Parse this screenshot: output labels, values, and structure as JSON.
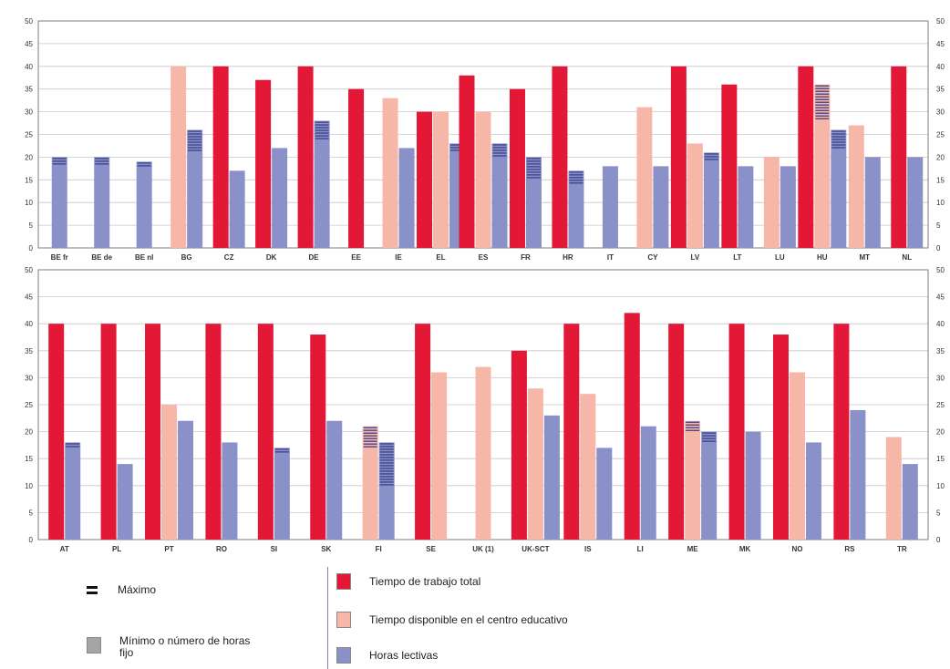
{
  "chart_data": [
    {
      "type": "bar",
      "categories": [
        "BE fr",
        "BE de",
        "BE nl",
        "BG",
        "CZ",
        "DK",
        "DE",
        "EE",
        "IE",
        "EL",
        "ES",
        "FR",
        "HR",
        "IT",
        "CY",
        "LV",
        "LT",
        "LU",
        "HU",
        "MT",
        "NL"
      ],
      "ylim": [
        0,
        50
      ],
      "yticks": [
        0,
        5,
        10,
        15,
        20,
        25,
        30,
        35,
        40,
        45,
        50
      ],
      "series": [
        {
          "name": "Tiempo de trabajo total",
          "values": [
            null,
            null,
            null,
            null,
            40,
            37,
            40,
            35,
            null,
            30,
            38,
            35,
            40,
            null,
            null,
            40,
            36,
            null,
            40,
            null,
            40
          ]
        },
        {
          "name": "Tiempo disponible en el centro educativo",
          "values": [
            null,
            null,
            null,
            40,
            null,
            null,
            null,
            null,
            33,
            30,
            30,
            null,
            null,
            null,
            31,
            23,
            null,
            20,
            36,
            27,
            null
          ]
        },
        {
          "name": "Horas lectivas",
          "values": [
            20,
            20,
            19,
            26,
            17,
            22,
            28,
            null,
            22,
            23,
            23,
            20,
            17,
            18,
            18,
            21,
            18,
            18,
            26,
            20,
            20
          ]
        }
      ],
      "maximum_hatched": [
        {
          "category": "BE fr",
          "series": "Horas lectivas",
          "from": 18,
          "to": 20
        },
        {
          "category": "BE de",
          "series": "Horas lectivas",
          "from": 18,
          "to": 20
        },
        {
          "category": "BE nl",
          "series": "Horas lectivas",
          "from": 18,
          "to": 19
        },
        {
          "category": "BG",
          "series": "Horas lectivas",
          "from": 21,
          "to": 26
        },
        {
          "category": "DE",
          "series": "Horas lectivas",
          "from": 24,
          "to": 28
        },
        {
          "category": "EL",
          "series": "Horas lectivas",
          "from": 21,
          "to": 23
        },
        {
          "category": "ES",
          "series": "Horas lectivas",
          "from": 20,
          "to": 23
        },
        {
          "category": "FR",
          "series": "Horas lectivas",
          "from": 15,
          "to": 20
        },
        {
          "category": "HR",
          "series": "Horas lectivas",
          "from": 14,
          "to": 17
        },
        {
          "category": "LV",
          "series": "Horas lectivas",
          "from": 19,
          "to": 21
        },
        {
          "category": "HU",
          "series": "Tiempo disponible en el centro educativo",
          "from": 28,
          "to": 36
        },
        {
          "category": "HU",
          "series": "Horas lectivas",
          "from": 22,
          "to": 26
        }
      ]
    },
    {
      "type": "bar",
      "categories": [
        "AT",
        "PL",
        "PT",
        "RO",
        "SI",
        "SK",
        "FI",
        "SE",
        "UK (1)",
        "UK-SCT",
        "IS",
        "LI",
        "ME",
        "MK",
        "NO",
        "RS",
        "TR"
      ],
      "ylim": [
        0,
        50
      ],
      "yticks": [
        0,
        5,
        10,
        15,
        20,
        25,
        30,
        35,
        40,
        45,
        50
      ],
      "series": [
        {
          "name": "Tiempo de trabajo total",
          "values": [
            40,
            40,
            40,
            40,
            40,
            38,
            null,
            40,
            null,
            35,
            40,
            42,
            40,
            40,
            38,
            40,
            null
          ]
        },
        {
          "name": "Tiempo disponible en el centro educativo",
          "values": [
            null,
            null,
            25,
            null,
            null,
            null,
            21,
            31,
            32,
            28,
            27,
            null,
            22,
            null,
            31,
            null,
            19
          ]
        },
        {
          "name": "Horas lectivas",
          "values": [
            18,
            14,
            22,
            18,
            17,
            22,
            18,
            null,
            null,
            23,
            17,
            21,
            20,
            20,
            18,
            24,
            14
          ]
        }
      ],
      "maximum_hatched": [
        {
          "category": "AT",
          "series": "Horas lectivas",
          "from": 17,
          "to": 18
        },
        {
          "category": "SI",
          "series": "Horas lectivas",
          "from": 16,
          "to": 17
        },
        {
          "category": "FI",
          "series": "Tiempo disponible en el centro educativo",
          "from": 17,
          "to": 21
        },
        {
          "category": "FI",
          "series": "Horas lectivas",
          "from": 10,
          "to": 18
        },
        {
          "category": "ME",
          "series": "Tiempo disponible en el centro educativo",
          "from": 20,
          "to": 22
        },
        {
          "category": "ME",
          "series": "Horas lectivas",
          "from": 18,
          "to": 20
        }
      ]
    }
  ],
  "colors": {
    "total": "#e31837",
    "centro": "#f6b7a9",
    "lectivas": "#8a91c8",
    "grid": "#c8c8c8",
    "axis": "#7c7c7c",
    "hatch": "#3a3f8a"
  },
  "legend": {
    "max_label": "Máximo",
    "min_label": "Mínimo o número de horas fijo",
    "total_label": "Tiempo de trabajo total",
    "centro_label": "Tiempo disponible en el centro educativo",
    "lectivas_label": "Horas lectivas",
    "max_icon": "double-dash-icon"
  }
}
